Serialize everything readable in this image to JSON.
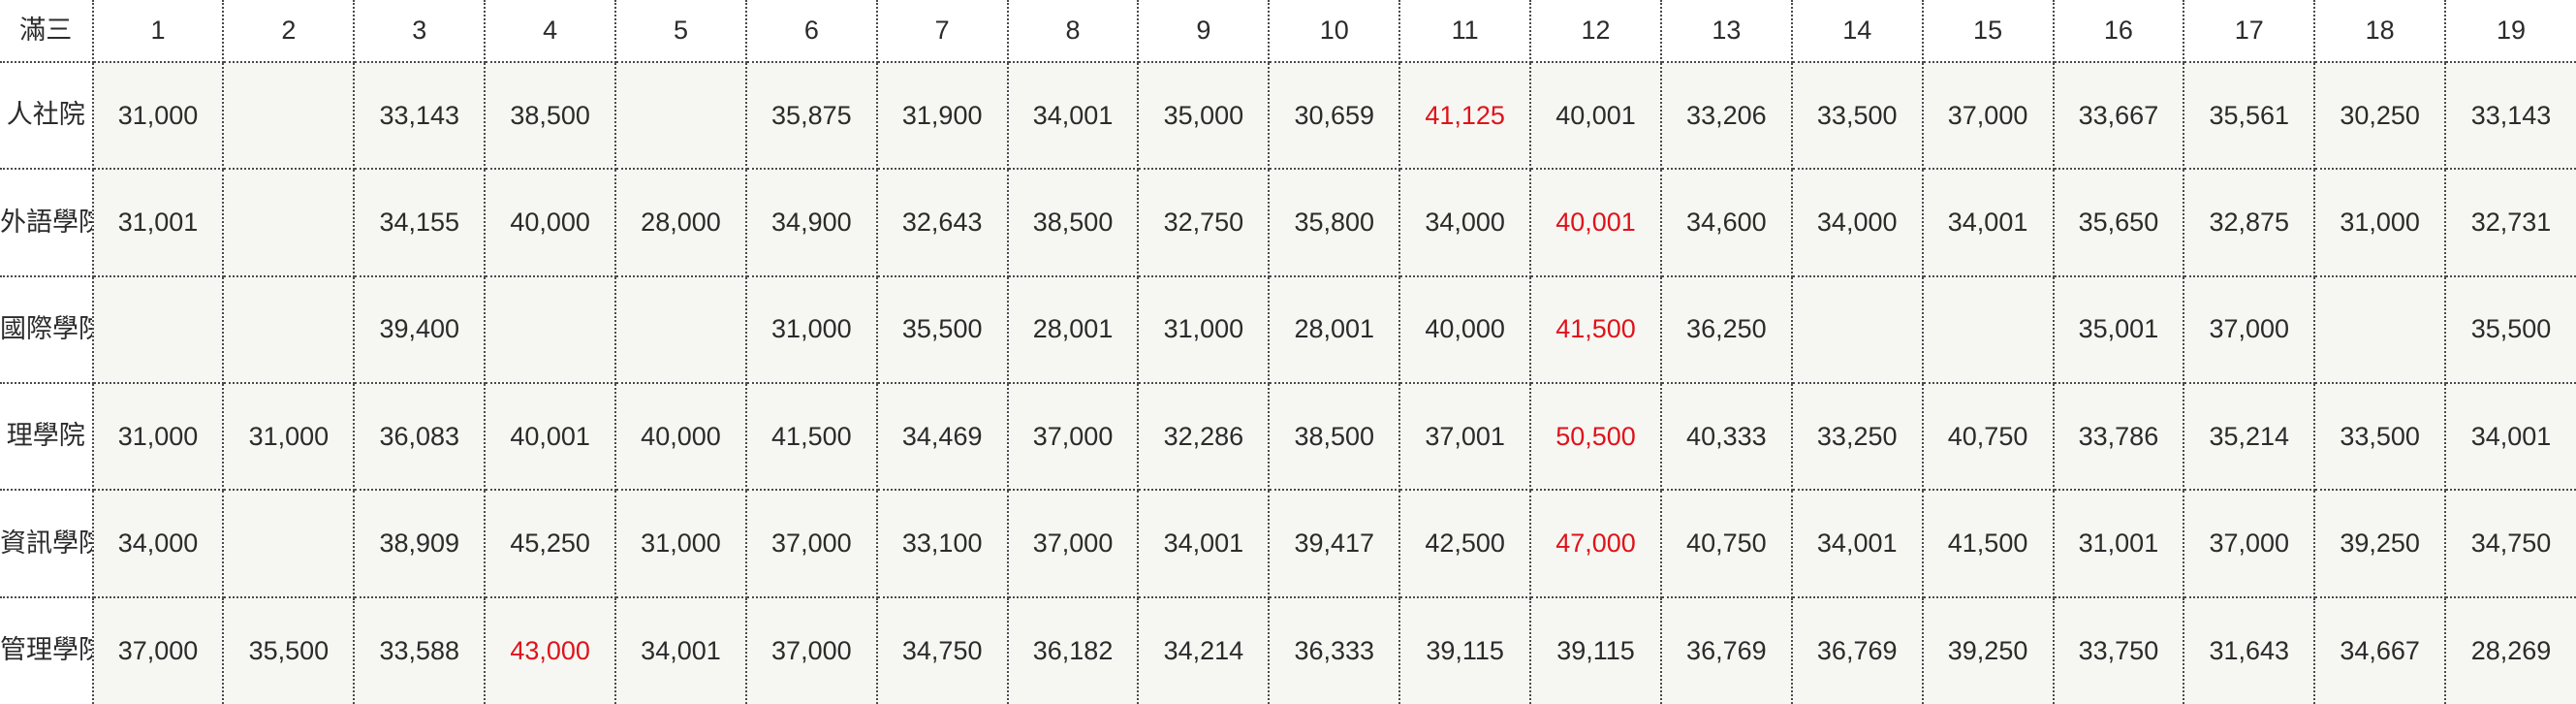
{
  "corner_label": "滿三",
  "columns": [
    "1",
    "2",
    "3",
    "4",
    "5",
    "6",
    "7",
    "8",
    "9",
    "10",
    "11",
    "12",
    "13",
    "14",
    "15",
    "16",
    "17",
    "18",
    "19"
  ],
  "highlight_color": "#e0121b",
  "rows": [
    {
      "college": "人社院",
      "values": [
        "31,000",
        "",
        "33,143",
        "38,500",
        "",
        "35,875",
        "31,900",
        "34,001",
        "35,000",
        "30,659",
        "41,125",
        "40,001",
        "33,206",
        "33,500",
        "37,000",
        "33,667",
        "35,561",
        "30,250",
        "33,143"
      ],
      "highlight_index": 10
    },
    {
      "college": "外語學院",
      "values": [
        "31,001",
        "",
        "34,155",
        "40,000",
        "28,000",
        "34,900",
        "32,643",
        "38,500",
        "32,750",
        "35,800",
        "34,000",
        "40,001",
        "34,600",
        "34,000",
        "34,001",
        "35,650",
        "32,875",
        "31,000",
        "32,731"
      ],
      "highlight_index": 11
    },
    {
      "college": "國際學院",
      "values": [
        "",
        "",
        "39,400",
        "",
        "",
        "31,000",
        "35,500",
        "28,001",
        "31,000",
        "28,001",
        "40,000",
        "41,500",
        "36,250",
        "",
        "",
        "35,001",
        "37,000",
        "",
        "35,500"
      ],
      "highlight_index": 11
    },
    {
      "college": "理學院",
      "values": [
        "31,000",
        "31,000",
        "36,083",
        "40,001",
        "40,000",
        "41,500",
        "34,469",
        "37,000",
        "32,286",
        "38,500",
        "37,001",
        "50,500",
        "40,333",
        "33,250",
        "40,750",
        "33,786",
        "35,214",
        "33,500",
        "34,001"
      ],
      "highlight_index": 11
    },
    {
      "college": "資訊學院",
      "values": [
        "34,000",
        "",
        "38,909",
        "45,250",
        "31,000",
        "37,000",
        "33,100",
        "37,000",
        "34,001",
        "39,417",
        "42,500",
        "47,000",
        "40,750",
        "34,001",
        "41,500",
        "31,001",
        "37,000",
        "39,250",
        "34,750"
      ],
      "highlight_index": 11
    },
    {
      "college": "管理學院",
      "values": [
        "37,000",
        "35,500",
        "33,588",
        "43,000",
        "34,001",
        "37,000",
        "34,750",
        "36,182",
        "34,214",
        "36,333",
        "39,115",
        "39,115",
        "36,769",
        "36,769",
        "39,250",
        "33,750",
        "31,643",
        "34,667",
        "28,269"
      ],
      "highlight_index": 3
    }
  ]
}
